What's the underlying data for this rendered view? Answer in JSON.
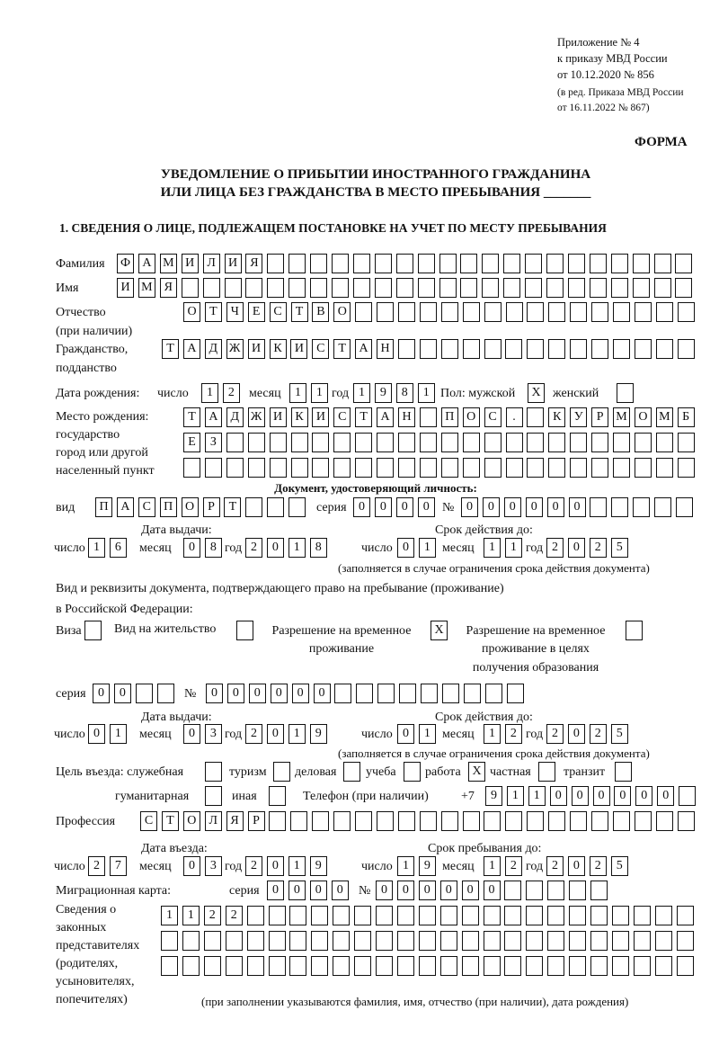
{
  "header": {
    "appendix": "Приложение № 4",
    "order": "к приказу МВД России",
    "order_date": "от 10.12.2020 № 856",
    "revision1": "(в ред. Приказа МВД России",
    "revision2": "от 16.11.2022 № 867)",
    "form_label": "ФОРМА",
    "title1": "УВЕДОМЛЕНИЕ О ПРИБЫТИИ ИНОСТРАННОГО ГРАЖДАНИНА",
    "title2": "ИЛИ ЛИЦА БЕЗ ГРАЖДАНСТВА В МЕСТО ПРЕБЫВАНИЯ _______",
    "section1": "1. СВЕДЕНИЯ О ЛИЦЕ, ПОДЛЕЖАЩЕМ ПОСТАНОВКЕ НА УЧЕТ ПО МЕСТУ ПРЕБЫВАНИЯ"
  },
  "person": {
    "surname_label": "Фамилия",
    "surname": "ФАМИЛИЯ",
    "name_label": "Имя",
    "name": "ИМЯ",
    "patronymic_label": "Отчество",
    "patronymic_note": "(при наличии)",
    "patronymic": "ОТЧЕСТВО",
    "citizenship_label": "Гражданство,",
    "citizenship_label2": "подданство",
    "citizenship": "ТАДЖИКИСТАН",
    "birth_label": "Дата рождения:",
    "day_label": "число",
    "month_label": "месяц",
    "year_label": "год",
    "birth_day": "12",
    "birth_month": "11",
    "birth_year": "1981",
    "sex_label": "Пол: мужской",
    "female_label": "женский",
    "male_mark": "X",
    "female_mark": "",
    "birthplace_label1": "Место рождения:",
    "birthplace_label2": "государство",
    "birthplace_label3": "город или другой",
    "birthplace_label4": "населенный пункт",
    "birthplace_row1": "ТАДЖИКИСТАН ПОС. КУРМОМБ",
    "birthplace_row2": "ЕЗ",
    "birthplace_row3": ""
  },
  "id_doc": {
    "title": "Документ, удостоверяющий личность:",
    "type_label": "вид",
    "type": "ПАСПОРТ",
    "series_label": "серия",
    "series": "0000",
    "number_label": "№",
    "number": "000000",
    "issue_label": "Дата выдачи:",
    "valid_label": "Срок действия до:",
    "day_label": "число",
    "month_label": "месяц",
    "year_label": "год",
    "issue_day": "16",
    "issue_month": "08",
    "issue_year": "2018",
    "valid_day": "01",
    "valid_month": "11",
    "valid_year": "2025",
    "note": "(заполняется в случае ограничения срока действия документа)"
  },
  "stay_doc": {
    "title1": "Вид и реквизиты документа, подтверждающего право на пребывание (проживание)",
    "title2": "в Российской Федерации:",
    "visa_label": "Виза",
    "visa_mark": "",
    "residence_label": "Вид на жительство",
    "residence_mark": "",
    "trp_label1": "Разрешение на временное",
    "trp_label2": "проживание",
    "trp_mark": "X",
    "trpe_label1": "Разрешение на временное",
    "trpe_label2": "проживание в целях",
    "trpe_label3": "получения образования",
    "trpe_mark": "",
    "series_label": "серия",
    "series": "00",
    "number_label": "№",
    "number": "000000",
    "issue_label": "Дата выдачи:",
    "valid_label": "Срок действия до:",
    "day_label": "число",
    "month_label": "месяц",
    "year_label": "год",
    "issue_day": "01",
    "issue_month": "03",
    "issue_year": "2019",
    "valid_day": "01",
    "valid_month": "12",
    "valid_year": "2025",
    "note": "(заполняется в случае ограничения срока действия документа)"
  },
  "purpose": {
    "label": "Цель въезда: служебная",
    "official_mark": "",
    "tourism_label": "туризм",
    "tourism_mark": "",
    "business_label": "деловая",
    "business_mark": "",
    "study_label": "учеба",
    "study_mark": "",
    "work_label": "работа",
    "work_mark": "X",
    "private_label": "частная",
    "private_mark": "",
    "transit_label": "транзит",
    "transit_mark": "",
    "humanitarian_label": "гуманитарная",
    "humanitarian_mark": "",
    "other_label": "иная",
    "other_mark": "",
    "phone_label": "Телефон (при наличии)",
    "phone_prefix": "+7",
    "phone": "911000000"
  },
  "profession": {
    "label": "Профессия",
    "value": "СТОЛЯР"
  },
  "entry": {
    "entry_label": "Дата въезда:",
    "stay_label": "Срок пребывания до:",
    "day_label": "число",
    "month_label": "месяц",
    "year_label": "год",
    "entry_day": "27",
    "entry_month": "03",
    "entry_year": "2019",
    "stay_day": "19",
    "stay_month": "12",
    "stay_year": "2025"
  },
  "migration_card": {
    "label": "Миграционная карта:",
    "series_label": "серия",
    "series": "0000",
    "number_label": "№",
    "number": "000000"
  },
  "representatives": {
    "label1": "Сведения о",
    "label2": "законных",
    "label3": "представителях",
    "label4": "(родителях,",
    "label5": "усыновителях,",
    "label6": "попечителях)",
    "row1": "1122",
    "row2": "",
    "row3": "",
    "note": "(при заполнении указываются фамилия, имя, отчество (при наличии), дата рождения)"
  }
}
